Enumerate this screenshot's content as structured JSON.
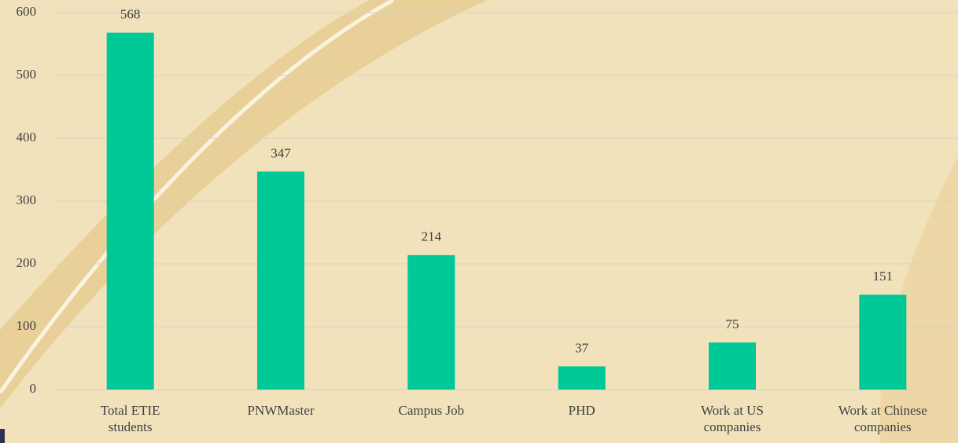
{
  "chart_data": {
    "type": "bar",
    "categories": [
      "Total ETIE students",
      "PNWMaster",
      "Campus Job",
      "PHD",
      "Work at US companies",
      "Work at Chinese companies"
    ],
    "values": [
      568,
      347,
      214,
      37,
      75,
      151
    ],
    "color": "#00c896",
    "ylim": [
      0,
      600
    ],
    "yticks": [
      0,
      100,
      200,
      300,
      400,
      500,
      600
    ],
    "grid": true
  }
}
